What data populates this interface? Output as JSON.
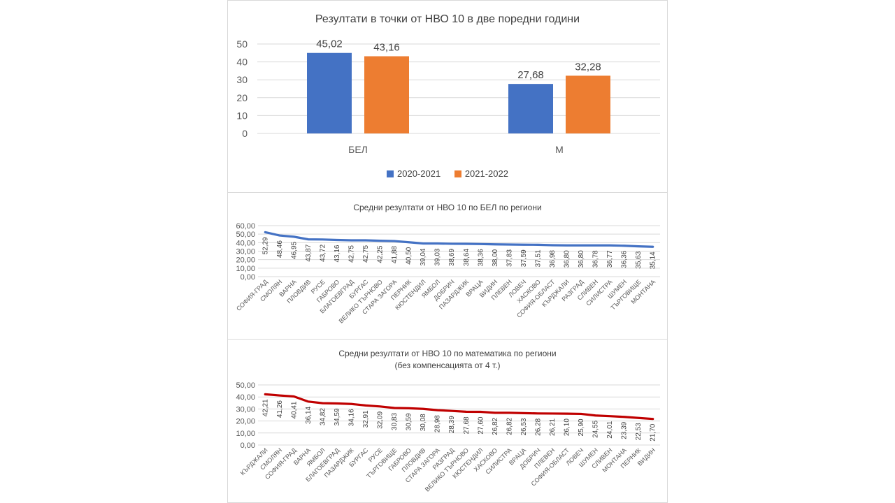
{
  "chart_data": [
    {
      "type": "bar",
      "title": "Резултати в точки от НВО 10 в две поредни години",
      "categories": [
        "БЕЛ",
        "М"
      ],
      "series": [
        {
          "name": "2020-2021",
          "values": [
            45.02,
            27.68
          ],
          "labels": [
            "45,02",
            "27,68"
          ],
          "color": "#4472C4"
        },
        {
          "name": "2021-2022",
          "values": [
            43.16,
            32.28
          ],
          "labels": [
            "43,16",
            "32,28"
          ],
          "color": "#ED7D31"
        }
      ],
      "yticks": [
        "0",
        "10",
        "20",
        "30",
        "40",
        "50"
      ],
      "ylim": [
        0,
        50
      ],
      "grid": true,
      "legend": "bottom"
    },
    {
      "type": "line",
      "title": "Средни резултати от НВО 10 по БЕЛ по региони",
      "categories": [
        "СОФИЯ-ГРАД",
        "СМОЛЯН",
        "ВАРНА",
        "ПЛОВДИВ",
        "РУСЕ",
        "ГАБРОВО",
        "БЛАГОЕВГРАД",
        "БУРГАС",
        "ВЕЛИКО ТЪРНОВО",
        "СТАРА ЗАГОРА",
        "ПЕРНИК",
        "КЮСТЕНДИЛ",
        "ЯМБОЛ",
        "ДОБРИЧ",
        "ПАЗАРДЖИК",
        "ВРАЦА",
        "ВИДИН",
        "ПЛЕВЕН",
        "ЛОВЕЧ",
        "ХАСКОВО",
        "СОФИЯ-ОБЛАСТ",
        "КЪРДЖАЛИ",
        "РАЗГРАД",
        "СЛИВЕН",
        "СИЛИСТРА",
        "ШУМЕН",
        "ТЪРГОВИЩЕ",
        "МОНТАНА"
      ],
      "values": [
        52.29,
        48.46,
        46.95,
        43.87,
        43.72,
        43.16,
        42.75,
        42.75,
        42.25,
        41.88,
        40.5,
        39.04,
        39.03,
        38.69,
        38.64,
        38.36,
        38.0,
        37.83,
        37.59,
        37.51,
        36.98,
        36.8,
        36.8,
        36.78,
        36.77,
        36.36,
        35.63,
        35.14
      ],
      "labels": [
        "52,29",
        "48,46",
        "46,95",
        "43,87",
        "43,72",
        "43,16",
        "42,75",
        "42,75",
        "42,25",
        "41,88",
        "40,50",
        "39,04",
        "39,03",
        "38,69",
        "38,64",
        "38,36",
        "38,00",
        "37,83",
        "37,59",
        "37,51",
        "36,98",
        "36,80",
        "36,80",
        "36,78",
        "36,77",
        "36,36",
        "35,63",
        "35,14"
      ],
      "yticks": [
        "0,00",
        "10,00",
        "20,00",
        "30,00",
        "40,00",
        "50,00",
        "60,00"
      ],
      "ylim": [
        0,
        60
      ],
      "grid": true,
      "color": "#4472C4"
    },
    {
      "type": "line",
      "title": "Средни резултати от НВО 10 по математика по региони",
      "subtitle": "(без компенсацията от 4 т.)",
      "categories": [
        "КЪРДЖАЛИ",
        "СМОЛЯН",
        "СОФИЯ-ГРАД",
        "ВАРНА",
        "ЯМБОЛ",
        "БЛАГОЕВГРАД",
        "ПАЗАРДЖИК",
        "БУРГАС",
        "РУСЕ",
        "ТЪРГОВИЩЕ",
        "ГАБРОВО",
        "ПЛОВДИВ",
        "СТАРА ЗАГОРА",
        "РАЗГРАД",
        "ВЕЛИКО ТЪРНОВО",
        "КЮСТЕНДИЛ",
        "ХАСКОВО",
        "СИЛИСТРА",
        "ВРАЦА",
        "ДОБРИЧ",
        "ПЛЕВЕН",
        "СОФИЯ-ОБЛАСТ",
        "ЛОВЕЧ",
        "ШУМЕН",
        "СЛИВЕН",
        "МОНТАНА",
        "ПЕРНИК",
        "ВИДИН"
      ],
      "values": [
        42.21,
        41.26,
        40.41,
        36.14,
        34.82,
        34.59,
        34.16,
        32.91,
        32.09,
        30.83,
        30.59,
        30.08,
        28.98,
        28.39,
        27.68,
        27.6,
        26.82,
        26.82,
        26.53,
        26.28,
        26.21,
        26.1,
        25.9,
        24.55,
        24.01,
        23.39,
        22.53,
        21.7
      ],
      "labels": [
        "42,21",
        "41,26",
        "40,41",
        "36,14",
        "34,82",
        "34,59",
        "34,16",
        "32,91",
        "32,09",
        "30,83",
        "30,59",
        "30,08",
        "28,98",
        "28,39",
        "27,68",
        "27,60",
        "26,82",
        "26,82",
        "26,53",
        "26,28",
        "26,21",
        "26,10",
        "25,90",
        "24,55",
        "24,01",
        "23,39",
        "22,53",
        "21,70"
      ],
      "yticks": [
        "0,00",
        "10,00",
        "20,00",
        "30,00",
        "40,00",
        "50,00"
      ],
      "ylim": [
        0,
        50
      ],
      "grid": true,
      "color": "#C00000"
    }
  ]
}
